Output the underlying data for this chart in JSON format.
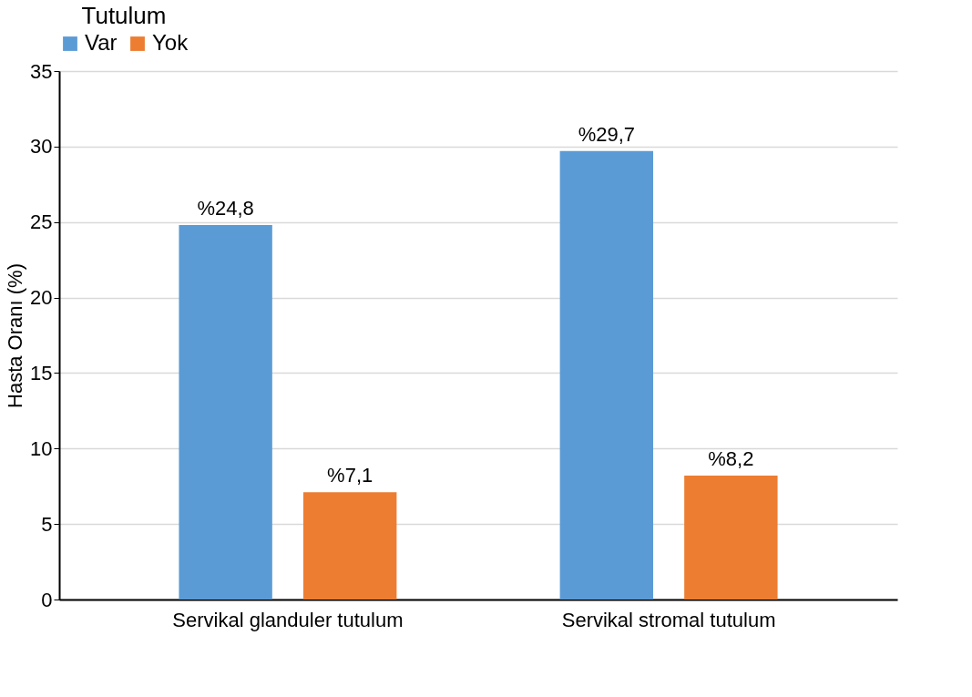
{
  "chart_data": {
    "type": "bar",
    "ylabel": "Hasta Oranı (%)",
    "legend_title": "Tutulum",
    "categories": [
      "Servikal glanduler tutulum",
      "Servikal stromal tutulum"
    ],
    "series": [
      {
        "name": "Var",
        "color": "#5b9bd5",
        "values": [
          24.8,
          29.7
        ],
        "value_labels": [
          "%24,8",
          "%29,7"
        ]
      },
      {
        "name": "Yok",
        "color": "#ed7d31",
        "values": [
          7.1,
          8.2
        ],
        "value_labels": [
          "%7,1",
          "%8,2"
        ]
      }
    ],
    "ylim": [
      0,
      35
    ],
    "yticks": [
      0,
      5,
      10,
      15,
      20,
      25,
      30,
      35
    ],
    "grid": "y",
    "legend": "top"
  }
}
